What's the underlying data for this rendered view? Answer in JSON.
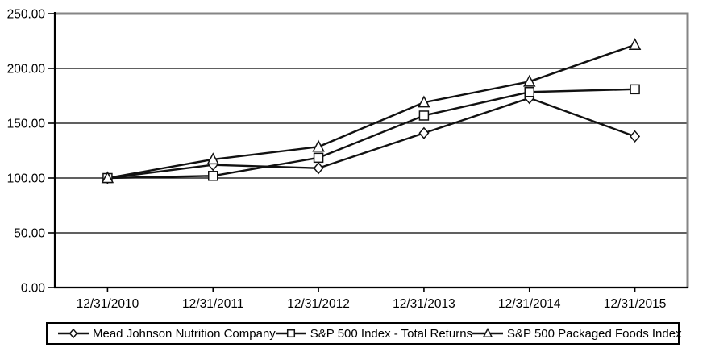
{
  "chart_data": {
    "type": "line",
    "x_labels": [
      "12/31/2010",
      "12/31/2011",
      "12/31/2012",
      "12/31/2013",
      "12/31/2014",
      "12/31/2015"
    ],
    "y_tick_labels": [
      "0.00",
      "50.00",
      "100.00",
      "150.00",
      "200.00",
      "250.00"
    ],
    "ylim": [
      0,
      250
    ],
    "y_step": 50,
    "grid": "horizontal",
    "legend_position": "bottom",
    "series": [
      {
        "name": "Mead Johnson Nutrition Company",
        "marker": "diamond",
        "values": [
          100,
          112,
          109,
          141,
          173,
          138
        ]
      },
      {
        "name": "S&P 500 Index - Total Returns",
        "marker": "square",
        "values": [
          100,
          102,
          118.5,
          157,
          178.5,
          181
        ]
      },
      {
        "name": "S&P 500 Packaged Foods Index",
        "marker": "triangle",
        "values": [
          100,
          117,
          128.5,
          169,
          188,
          221.5
        ]
      }
    ],
    "colors": {
      "series_line": "#111111",
      "gridline": "#000000",
      "axis": "#000000",
      "plot_border": "#858585",
      "marker_fill": "#ffffff",
      "text": "#000000"
    }
  }
}
